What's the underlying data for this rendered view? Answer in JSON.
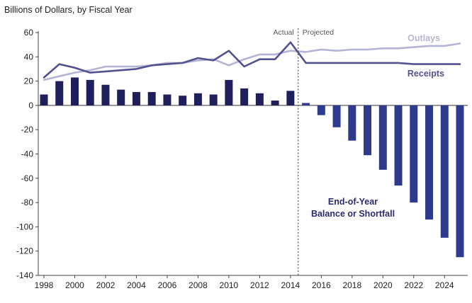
{
  "chart_data": {
    "type": "bar",
    "ylabel": "Billions of Dollars, by Fiscal Year",
    "ylim": [
      -140,
      60
    ],
    "yticks": [
      60,
      40,
      20,
      0,
      -20,
      -40,
      -60,
      -80,
      -100,
      -120,
      -140
    ],
    "xlim": [
      1998,
      2025
    ],
    "xticks": [
      1998,
      2000,
      2002,
      2004,
      2006,
      2008,
      2010,
      2012,
      2014,
      2016,
      2018,
      2020,
      2022,
      2024
    ],
    "annotations": {
      "actual": "Actual",
      "projected": "Projected",
      "divider_year": 2014.5
    },
    "series": [
      {
        "name": "End-of-Year Balance or Shortfall",
        "label_lines": [
          "End-of-Year",
          "Balance or Shortfall"
        ],
        "kind": "bar",
        "color_actual": "#1f1f5c",
        "color_projected": "#2e3a8c",
        "years": [
          1998,
          1999,
          2000,
          2001,
          2002,
          2003,
          2004,
          2005,
          2006,
          2007,
          2008,
          2009,
          2010,
          2011,
          2012,
          2013,
          2014,
          2015,
          2016,
          2017,
          2018,
          2019,
          2020,
          2021,
          2022,
          2023,
          2024,
          2025
        ],
        "values": [
          9,
          20,
          23,
          21,
          17,
          13,
          11,
          11,
          9,
          8,
          10,
          9,
          21,
          14,
          10,
          4,
          12,
          2,
          -8,
          -18,
          -29,
          -41,
          -53,
          -66,
          -80,
          -94,
          -109,
          -125
        ],
        "projected_from": 2015
      },
      {
        "name": "Outlays",
        "kind": "line",
        "color": "#b4b4d4",
        "years": [
          1998,
          1999,
          2000,
          2001,
          2002,
          2003,
          2004,
          2005,
          2006,
          2007,
          2008,
          2009,
          2010,
          2011,
          2012,
          2013,
          2014,
          2015,
          2016,
          2017,
          2018,
          2019,
          2020,
          2021,
          2022,
          2023,
          2024,
          2025
        ],
        "values": [
          21,
          24,
          27,
          29,
          32,
          32,
          32,
          33,
          35,
          35,
          37,
          38,
          33,
          38,
          42,
          42,
          45,
          44,
          46,
          45,
          46,
          46,
          47,
          47,
          48,
          49,
          49,
          51
        ]
      },
      {
        "name": "Receipts",
        "kind": "line",
        "color": "#52528f",
        "years": [
          1998,
          1999,
          2000,
          2001,
          2002,
          2003,
          2004,
          2005,
          2006,
          2007,
          2008,
          2009,
          2010,
          2011,
          2012,
          2013,
          2014,
          2015,
          2016,
          2017,
          2018,
          2019,
          2020,
          2021,
          2022,
          2023,
          2024,
          2025
        ],
        "values": [
          23,
          34,
          31,
          27,
          28,
          29,
          30,
          33,
          34,
          35,
          39,
          37,
          45,
          32,
          38,
          38,
          52,
          35,
          35,
          35,
          35,
          35,
          35,
          35,
          34,
          34,
          34,
          34
        ]
      }
    ]
  }
}
